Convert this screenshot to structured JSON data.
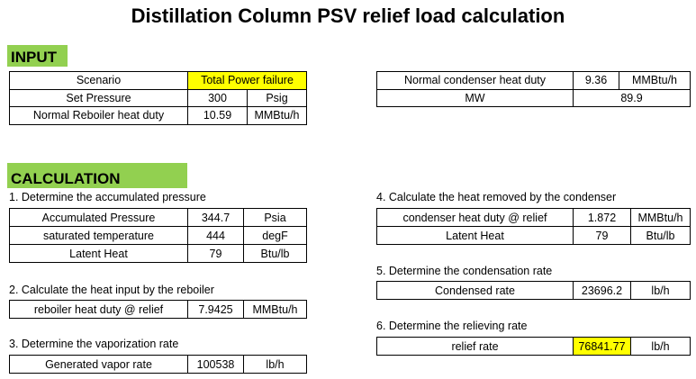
{
  "title": "Distillation Column PSV relief load calculation",
  "input": {
    "heading": "INPUT",
    "rows": [
      [
        "Scenario",
        "Total Power failure"
      ],
      [
        "Set Pressure",
        300,
        "Psig"
      ],
      [
        "Normal Reboiler heat duty",
        10.59,
        "MMBtu/h"
      ]
    ]
  },
  "conditions": {
    "rows": [
      [
        "Normal condenser heat duty",
        9.36,
        "MMBtu/h"
      ],
      [
        "MW",
        89.9
      ]
    ]
  },
  "calculation": {
    "heading": "CALCULATION",
    "sections": [
      {
        "heading": "1. Determine the accumulated pressure",
        "rows": [
          [
            "Accumulated Pressure",
            344.7,
            "Psia"
          ],
          [
            "saturated temperature",
            444,
            "degF"
          ],
          [
            "Latent Heat",
            79,
            "Btu/lb"
          ]
        ]
      },
      {
        "heading": "2. Calculate the heat input by the reboiler",
        "rows": [
          [
            "reboiler heat duty @ relief",
            7.9425,
            "MMBtu/h"
          ]
        ]
      },
      {
        "heading": "3. Determine the vaporization rate",
        "rows": [
          [
            "Generated vapor rate",
            100538,
            "lb/h"
          ]
        ]
      },
      {
        "heading": "4. Calculate the heat removed by the condenser",
        "rows": [
          [
            "condenser heat duty @ relief",
            1.872,
            "MMBtu/h"
          ],
          [
            "Latent Heat",
            79,
            "Btu/lb"
          ]
        ]
      },
      {
        "heading": "5. Determine the condensation rate",
        "rows": [
          [
            "Condensed rate",
            23696.2,
            "lb/h"
          ]
        ]
      },
      {
        "heading": "6. Determine the relieving rate",
        "rows": [
          [
            "relief rate",
            76841.77,
            "lb/h"
          ]
        ]
      }
    ]
  }
}
